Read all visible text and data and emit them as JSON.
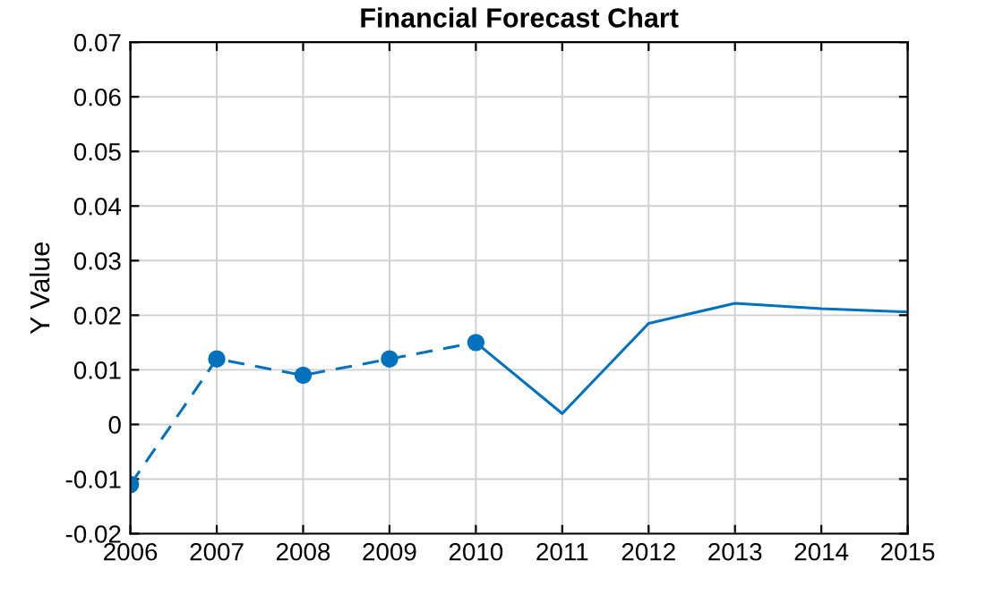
{
  "chart_data": {
    "type": "line",
    "title": "Financial Forecast Chart",
    "ylabel": "Y Value",
    "series": [
      {
        "color": "#0072bd",
        "x": [
          2006,
          2007,
          2008,
          2009,
          2010
        ],
        "values": [
          -0.011,
          0.012,
          0.009,
          0.012,
          0.015
        ],
        "marker": "circle",
        "line_style": "dashed"
      },
      {
        "color": "#0072bd",
        "x": [
          2010,
          2011,
          2012,
          2013,
          2014,
          2015
        ],
        "values": [
          0.015,
          0.002,
          0.0185,
          0.0222,
          0.0212,
          0.0206
        ],
        "marker": "none",
        "line_style": "solid"
      }
    ],
    "xlim": [
      2006,
      2015
    ],
    "xticks": [
      2006,
      2007,
      2008,
      2009,
      2010,
      2011,
      2012,
      2013,
      2014,
      2015
    ],
    "ylim": [
      -0.02,
      0.07
    ],
    "yticks": [
      -0.02,
      -0.01,
      0,
      0.01,
      0.02,
      0.03,
      0.04,
      0.05,
      0.06,
      0.07
    ],
    "grid": true,
    "legend": false
  }
}
